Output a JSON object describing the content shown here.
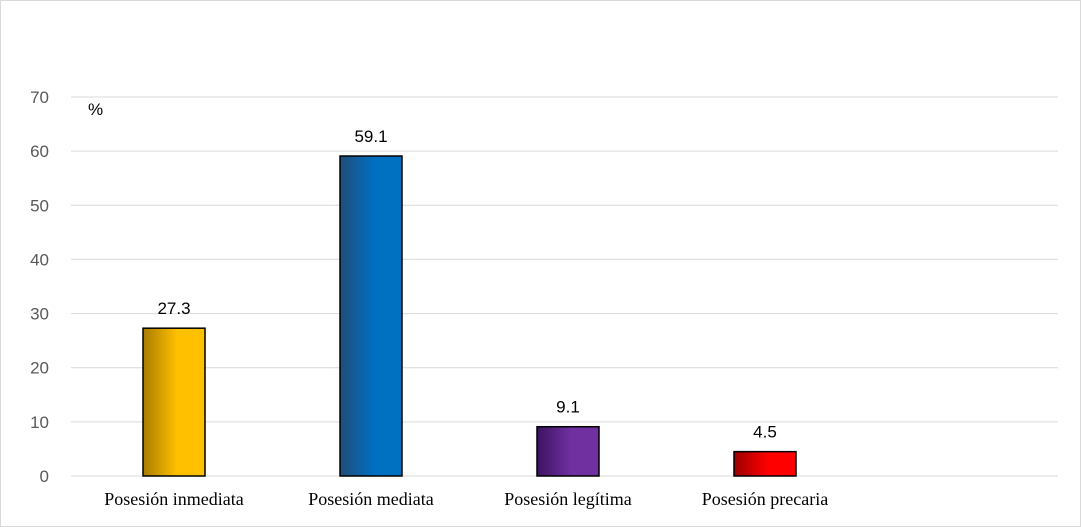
{
  "chart_data": {
    "type": "bar",
    "title": "",
    "xlabel": "",
    "ylabel": "",
    "unit_label": "%",
    "categories": [
      "Posesión inmediata",
      "Posesión mediata",
      "Posesión legítima",
      "Posesión precaria"
    ],
    "values": [
      27.3,
      59.1,
      9.1,
      4.5
    ],
    "data_labels": [
      "27.3",
      "59.1",
      "9.1",
      "4.5"
    ],
    "ylim": [
      0,
      70
    ],
    "yticks": [
      0,
      10,
      20,
      30,
      40,
      50,
      60,
      70
    ],
    "grid": true,
    "legend": "none",
    "bar_colors": [
      {
        "dark": "#a87c00",
        "light": "#ffc000"
      },
      {
        "dark": "#1f4e79",
        "light": "#0070c0"
      },
      {
        "dark": "#3c1361",
        "light": "#7030a0"
      },
      {
        "dark": "#9c0000",
        "light": "#ff0000"
      }
    ],
    "gridline_color": "#d9d9d9",
    "axis_color": "#d9d9d9"
  }
}
